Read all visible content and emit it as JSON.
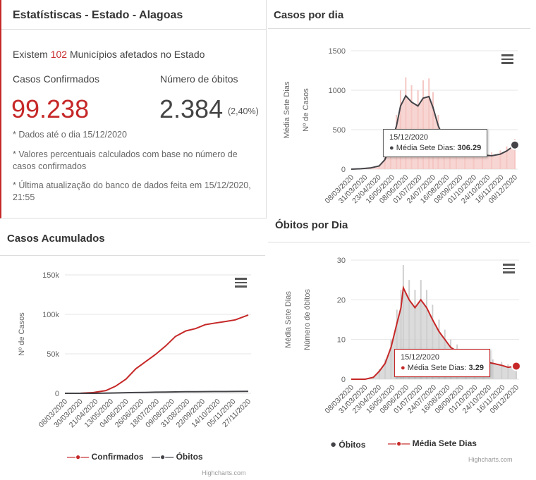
{
  "stats": {
    "title": "Estatístiscas - Estado - Alagoas",
    "affected_prefix": "Existem",
    "affected_count": "102",
    "affected_suffix": "Municípios afetados no Estado",
    "confirmed_label": "Casos Confirmados",
    "confirmed_value": "99.238",
    "deaths_label": "Número de óbitos",
    "deaths_value": "2.384",
    "deaths_pct": "(2,40%)",
    "note1": "* Dados até o dia 15/12/2020",
    "note2": "* Valores percentuais calculados com base no número de casos confirmados",
    "note3": "* Última atualização do banco de dados feita em 15/12/2020, 21:55"
  },
  "casos_dia": {
    "title": "Casos por dia",
    "tooltip_date": "15/12/2020",
    "tooltip_label": "Média Sete Dias:",
    "tooltip_value": "306.29"
  },
  "obitos_dia": {
    "title": "Óbitos por Dia",
    "tooltip_date": "15/12/2020",
    "tooltip_label": "Média Sete Dias:",
    "tooltip_value": "3.29",
    "legend": [
      "Óbitos",
      "Média Sete Dias"
    ],
    "credits": "Highcharts.com"
  },
  "acumulados": {
    "title": "Casos Acumulados",
    "legend": [
      "Confirmados",
      "Óbitos"
    ],
    "credits": "Highcharts.com"
  },
  "colors": {
    "red": "#c62828",
    "dark": "#434348",
    "pink": "#f4c7c3",
    "gray": "#cfcfcf"
  },
  "chart_data": [
    {
      "type": "area",
      "title": "Casos por dia",
      "ylabel": "Nº de Casos",
      "ylabel2": "Média Sete Dias",
      "ylim": [
        0,
        1500
      ],
      "yticks": [
        0,
        500,
        1000,
        1500
      ],
      "xticks": [
        "08/03/2020",
        "31/03/2020",
        "23/04/2020",
        "16/05/2020",
        "08/06/2020",
        "01/07/2020",
        "24/07/2020",
        "16/08/2020",
        "08/09/2020",
        "01/10/2020",
        "24/10/2020",
        "16/11/2020",
        "09/12/2020"
      ],
      "x": [
        "08/03/2020",
        "25/03/2020",
        "10/04/2020",
        "25/04/2020",
        "05/05/2020",
        "15/05/2020",
        "25/05/2020",
        "01/06/2020",
        "10/06/2020",
        "20/06/2020",
        "01/07/2020",
        "10/07/2020",
        "20/07/2020",
        "27/07/2020",
        "05/08/2020",
        "15/08/2020",
        "25/08/2020",
        "05/09/2020",
        "20/09/2020",
        "05/10/2020",
        "20/10/2020",
        "05/11/2020",
        "20/11/2020",
        "01/12/2020",
        "15/12/2020"
      ],
      "series": [
        {
          "name": "Média Sete Dias",
          "values": [
            0,
            5,
            15,
            40,
            120,
            300,
            550,
            800,
            930,
            850,
            800,
            900,
            920,
            780,
            550,
            380,
            300,
            280,
            250,
            200,
            180,
            170,
            190,
            230,
            306
          ]
        }
      ]
    },
    {
      "type": "area",
      "title": "Óbitos por Dia",
      "ylabel": "Número de óbitos",
      "ylabel2": "Média Sete Dias",
      "ylim": [
        0,
        30
      ],
      "yticks": [
        0,
        10,
        20,
        30
      ],
      "xticks": [
        "08/03/2020",
        "31/03/2020",
        "23/04/2020",
        "16/05/2020",
        "08/06/2020",
        "01/07/2020",
        "24/07/2020",
        "16/08/2020",
        "08/09/2020",
        "01/10/2020",
        "24/10/2020",
        "16/11/2020",
        "09/12/2020"
      ],
      "x": [
        "08/03/2020",
        "01/04/2020",
        "15/04/2020",
        "25/04/2020",
        "05/05/2020",
        "15/05/2020",
        "25/05/2020",
        "01/06/2020",
        "05/06/2020",
        "15/06/2020",
        "25/06/2020",
        "05/07/2020",
        "15/07/2020",
        "25/07/2020",
        "05/08/2020",
        "15/08/2020",
        "25/08/2020",
        "05/09/2020",
        "20/09/2020",
        "05/10/2020",
        "20/10/2020",
        "05/11/2020",
        "20/11/2020",
        "01/12/2020",
        "15/12/2020"
      ],
      "series": [
        {
          "name": "Média Sete Dias",
          "values": [
            0,
            0,
            0.5,
            2,
            4,
            8,
            14,
            18,
            23,
            20,
            18,
            20,
            18,
            15,
            12,
            10,
            8,
            7,
            6,
            5,
            4.5,
            4,
            3.5,
            3,
            3.29
          ]
        }
      ]
    },
    {
      "type": "line",
      "title": "Casos Acumulados",
      "ylabel": "Nº de Casos",
      "ylim": [
        0,
        150000
      ],
      "yticks": [
        "0",
        "50k",
        "100k",
        "150k"
      ],
      "xticks": [
        "08/03/2020",
        "30/03/2020",
        "21/04/2020",
        "13/05/2020",
        "04/06/2020",
        "26/06/2020",
        "18/07/2020",
        "09/08/2020",
        "31/08/2020",
        "22/09/2020",
        "14/10/2020",
        "05/11/2020",
        "27/11/2020"
      ],
      "x": [
        "08/03/2020",
        "01/04/2020",
        "21/04/2020",
        "10/05/2020",
        "25/05/2020",
        "10/06/2020",
        "25/06/2020",
        "10/07/2020",
        "25/07/2020",
        "10/08/2020",
        "25/08/2020",
        "10/09/2020",
        "25/09/2020",
        "10/10/2020",
        "25/10/2020",
        "10/11/2020",
        "25/11/2020",
        "15/12/2020"
      ],
      "series": [
        {
          "name": "Confirmados",
          "values": [
            0,
            100,
            1000,
            3500,
            9000,
            18000,
            31000,
            40000,
            49000,
            60000,
            72000,
            79000,
            82000,
            87000,
            89000,
            91000,
            93000,
            99238
          ]
        },
        {
          "name": "Óbitos",
          "values": [
            0,
            5,
            40,
            200,
            450,
            800,
            1000,
            1200,
            1450,
            1650,
            1800,
            1950,
            2050,
            2150,
            2200,
            2250,
            2300,
            2384
          ]
        }
      ]
    }
  ]
}
